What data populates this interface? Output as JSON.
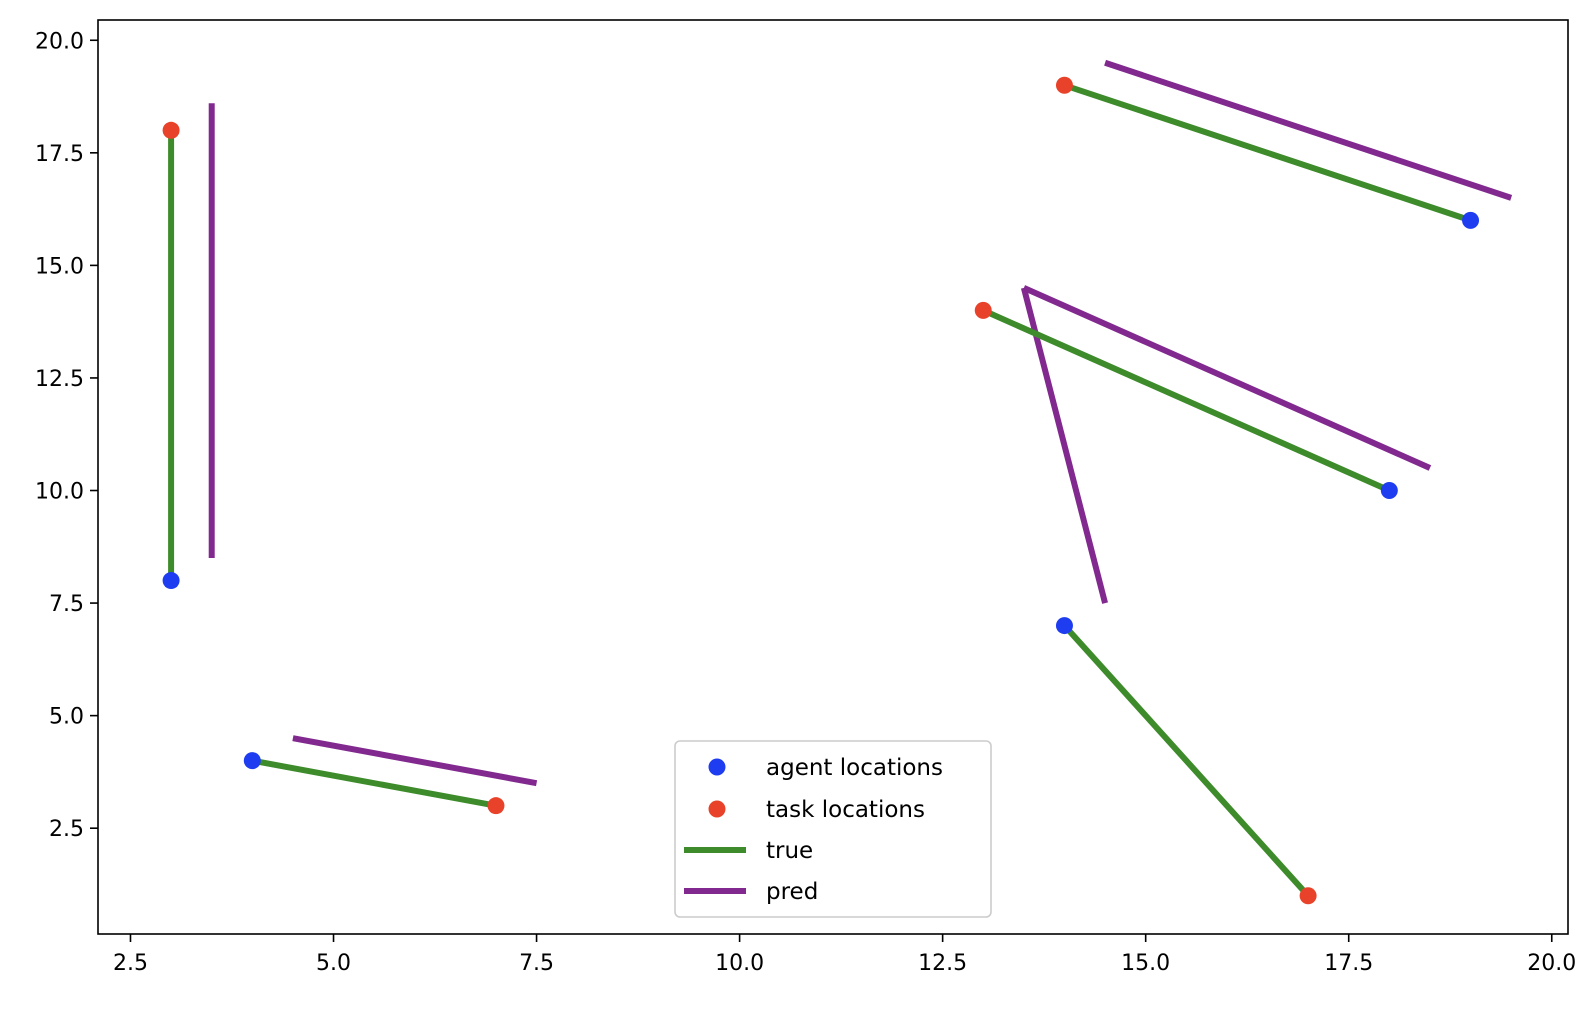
{
  "chart_data": {
    "type": "scatter",
    "title": "",
    "xlabel": "",
    "ylabel": "",
    "xlim": [
      2.1,
      20.2
    ],
    "ylim": [
      0.15,
      20.45
    ],
    "grid": false,
    "xticks": [
      "2.5",
      "5.0",
      "7.5",
      "10.0",
      "12.5",
      "15.0",
      "17.5",
      "20.0"
    ],
    "xtick_values": [
      2.5,
      5.0,
      7.5,
      10.0,
      12.5,
      15.0,
      17.5,
      20.0
    ],
    "yticks": [
      "2.5",
      "5.0",
      "7.5",
      "10.0",
      "12.5",
      "15.0",
      "17.5",
      "20.0"
    ],
    "ytick_values": [
      2.5,
      5.0,
      7.5,
      10.0,
      12.5,
      15.0,
      17.5,
      20.0
    ],
    "legend": {
      "placement": "lower center",
      "entries": [
        {
          "label": "agent locations",
          "kind": "marker",
          "color": "#1f3df0"
        },
        {
          "label": "task locations",
          "kind": "marker",
          "color": "#e8432a"
        },
        {
          "label": "true",
          "kind": "line",
          "color": "#3d8b2a"
        },
        {
          "label": "pred",
          "kind": "line",
          "color": "#82298f"
        }
      ]
    },
    "series": [
      {
        "name": "agent locations",
        "type": "scatter",
        "color": "#1f3df0",
        "points": [
          [
            3,
            8
          ],
          [
            4,
            4
          ],
          [
            14,
            7
          ],
          [
            18,
            10
          ],
          [
            19,
            16
          ]
        ]
      },
      {
        "name": "task locations",
        "type": "scatter",
        "color": "#e8432a",
        "points": [
          [
            3,
            18
          ],
          [
            7,
            3
          ],
          [
            17,
            1
          ],
          [
            13,
            14
          ],
          [
            14,
            19
          ]
        ]
      },
      {
        "name": "true",
        "type": "segments",
        "color": "#3d8b2a",
        "segments": [
          [
            [
              3,
              8
            ],
            [
              3,
              18
            ]
          ],
          [
            [
              4,
              4
            ],
            [
              7,
              3
            ]
          ],
          [
            [
              14,
              7
            ],
            [
              17,
              1
            ]
          ],
          [
            [
              18,
              10
            ],
            [
              13,
              14
            ]
          ],
          [
            [
              19,
              16
            ],
            [
              14,
              19
            ]
          ]
        ]
      },
      {
        "name": "pred",
        "type": "segments",
        "color": "#82298f",
        "segments": [
          [
            [
              3.5,
              8.5
            ],
            [
              3.5,
              18.6
            ]
          ],
          [
            [
              4.5,
              4.5
            ],
            [
              7.5,
              3.5
            ]
          ],
          [
            [
              14.5,
              7.5
            ],
            [
              13.5,
              14.5
            ]
          ],
          [
            [
              18.5,
              10.5
            ],
            [
              13.5,
              14.5
            ]
          ],
          [
            [
              19.5,
              16.5
            ],
            [
              14.5,
              19.5
            ]
          ]
        ]
      }
    ]
  }
}
